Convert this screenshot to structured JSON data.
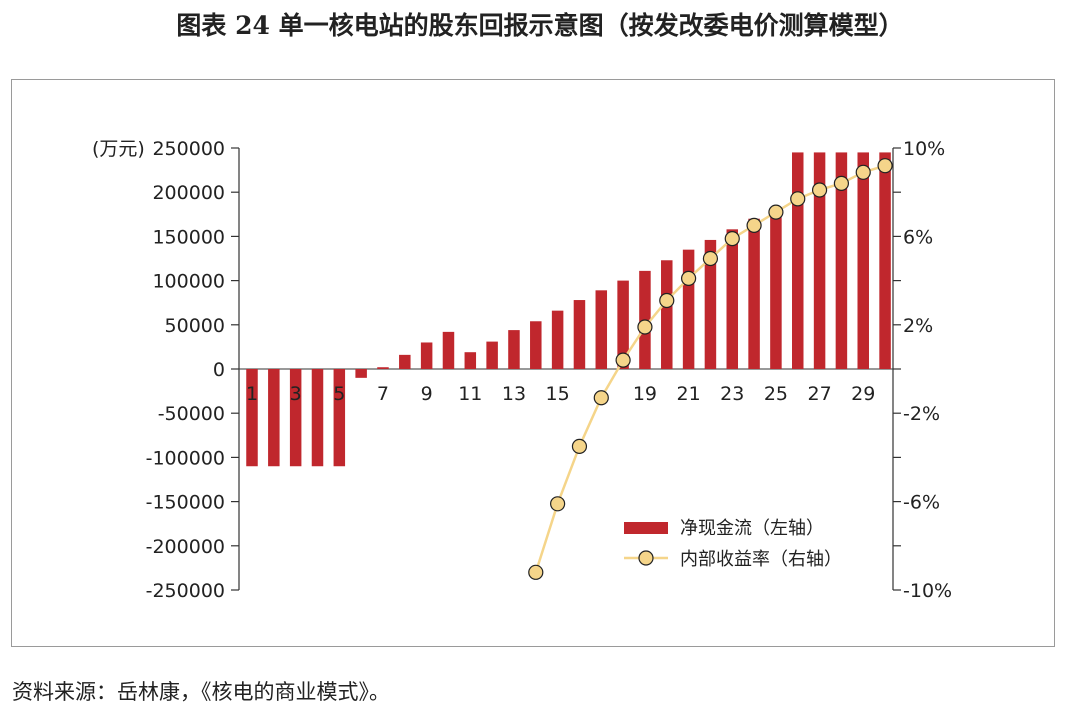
{
  "title": "图表 24  单一核电站的股东回报示意图（按发改委电价测算模型）",
  "source": "资料来源：岳林康，《核电的商业模式》。",
  "colors": {
    "bar": "#c0272d",
    "line": "#f5d58a",
    "marker_fill": "#f5d58a",
    "marker_stroke": "#222222"
  },
  "chart_data": {
    "type": "bar+line",
    "years": [
      1,
      2,
      3,
      4,
      5,
      6,
      7,
      8,
      9,
      10,
      11,
      12,
      13,
      14,
      15,
      16,
      17,
      18,
      19,
      20,
      21,
      22,
      23,
      24,
      25,
      26,
      27,
      28,
      29,
      30
    ],
    "x_tick_labels": [
      "1",
      "3",
      "5",
      "7",
      "9",
      "11",
      "13",
      "15",
      "19",
      "21",
      "23",
      "25",
      "27",
      "29"
    ],
    "x_tick_years": [
      1,
      3,
      5,
      7,
      9,
      11,
      13,
      15,
      19,
      21,
      23,
      25,
      27,
      29
    ],
    "left_axis": {
      "unit_label": "(万元)",
      "range": [
        -250000,
        250000
      ],
      "ticks": [
        250000,
        200000,
        150000,
        100000,
        50000,
        0,
        -50000,
        -100000,
        -150000,
        -200000,
        -250000
      ],
      "tick_labels": [
        "250000",
        "200000",
        "150000",
        "100000",
        "50000",
        "0",
        "-50000",
        "-100000",
        "-150000",
        "-200000",
        "-250000"
      ]
    },
    "right_axis": {
      "range": [
        -10,
        10
      ],
      "ticks": [
        10,
        6,
        2,
        -2,
        -6,
        -10
      ],
      "tick_labels": [
        "10%",
        "6%",
        "2%",
        "-2%",
        "-6%",
        "-10%"
      ],
      "minor_ticks": [
        8,
        4,
        0,
        -4,
        -8
      ]
    },
    "series": [
      {
        "name": "净现金流（左轴）",
        "type": "bar",
        "axis": "left",
        "values": [
          -110000,
          -110000,
          -110000,
          -110000,
          -110000,
          -10000,
          2000,
          16000,
          30000,
          42000,
          19000,
          31000,
          44000,
          54000,
          66000,
          78000,
          89000,
          100000,
          111000,
          123000,
          135000,
          146000,
          158000,
          170000,
          180000,
          245000,
          245000,
          245000,
          245000,
          245000
        ]
      },
      {
        "name": "内部收益率（右轴）",
        "type": "line",
        "axis": "right",
        "x": [
          14,
          15,
          16,
          17,
          18,
          19,
          20,
          21,
          22,
          23,
          24,
          25,
          26,
          27,
          28,
          29,
          30
        ],
        "values": [
          -9.2,
          -6.1,
          -3.5,
          -1.3,
          0.4,
          1.9,
          3.1,
          4.1,
          5.0,
          5.9,
          6.5,
          7.1,
          7.7,
          8.1,
          8.4,
          8.9,
          9.2
        ]
      }
    ],
    "legend_position": "bottom-right"
  }
}
